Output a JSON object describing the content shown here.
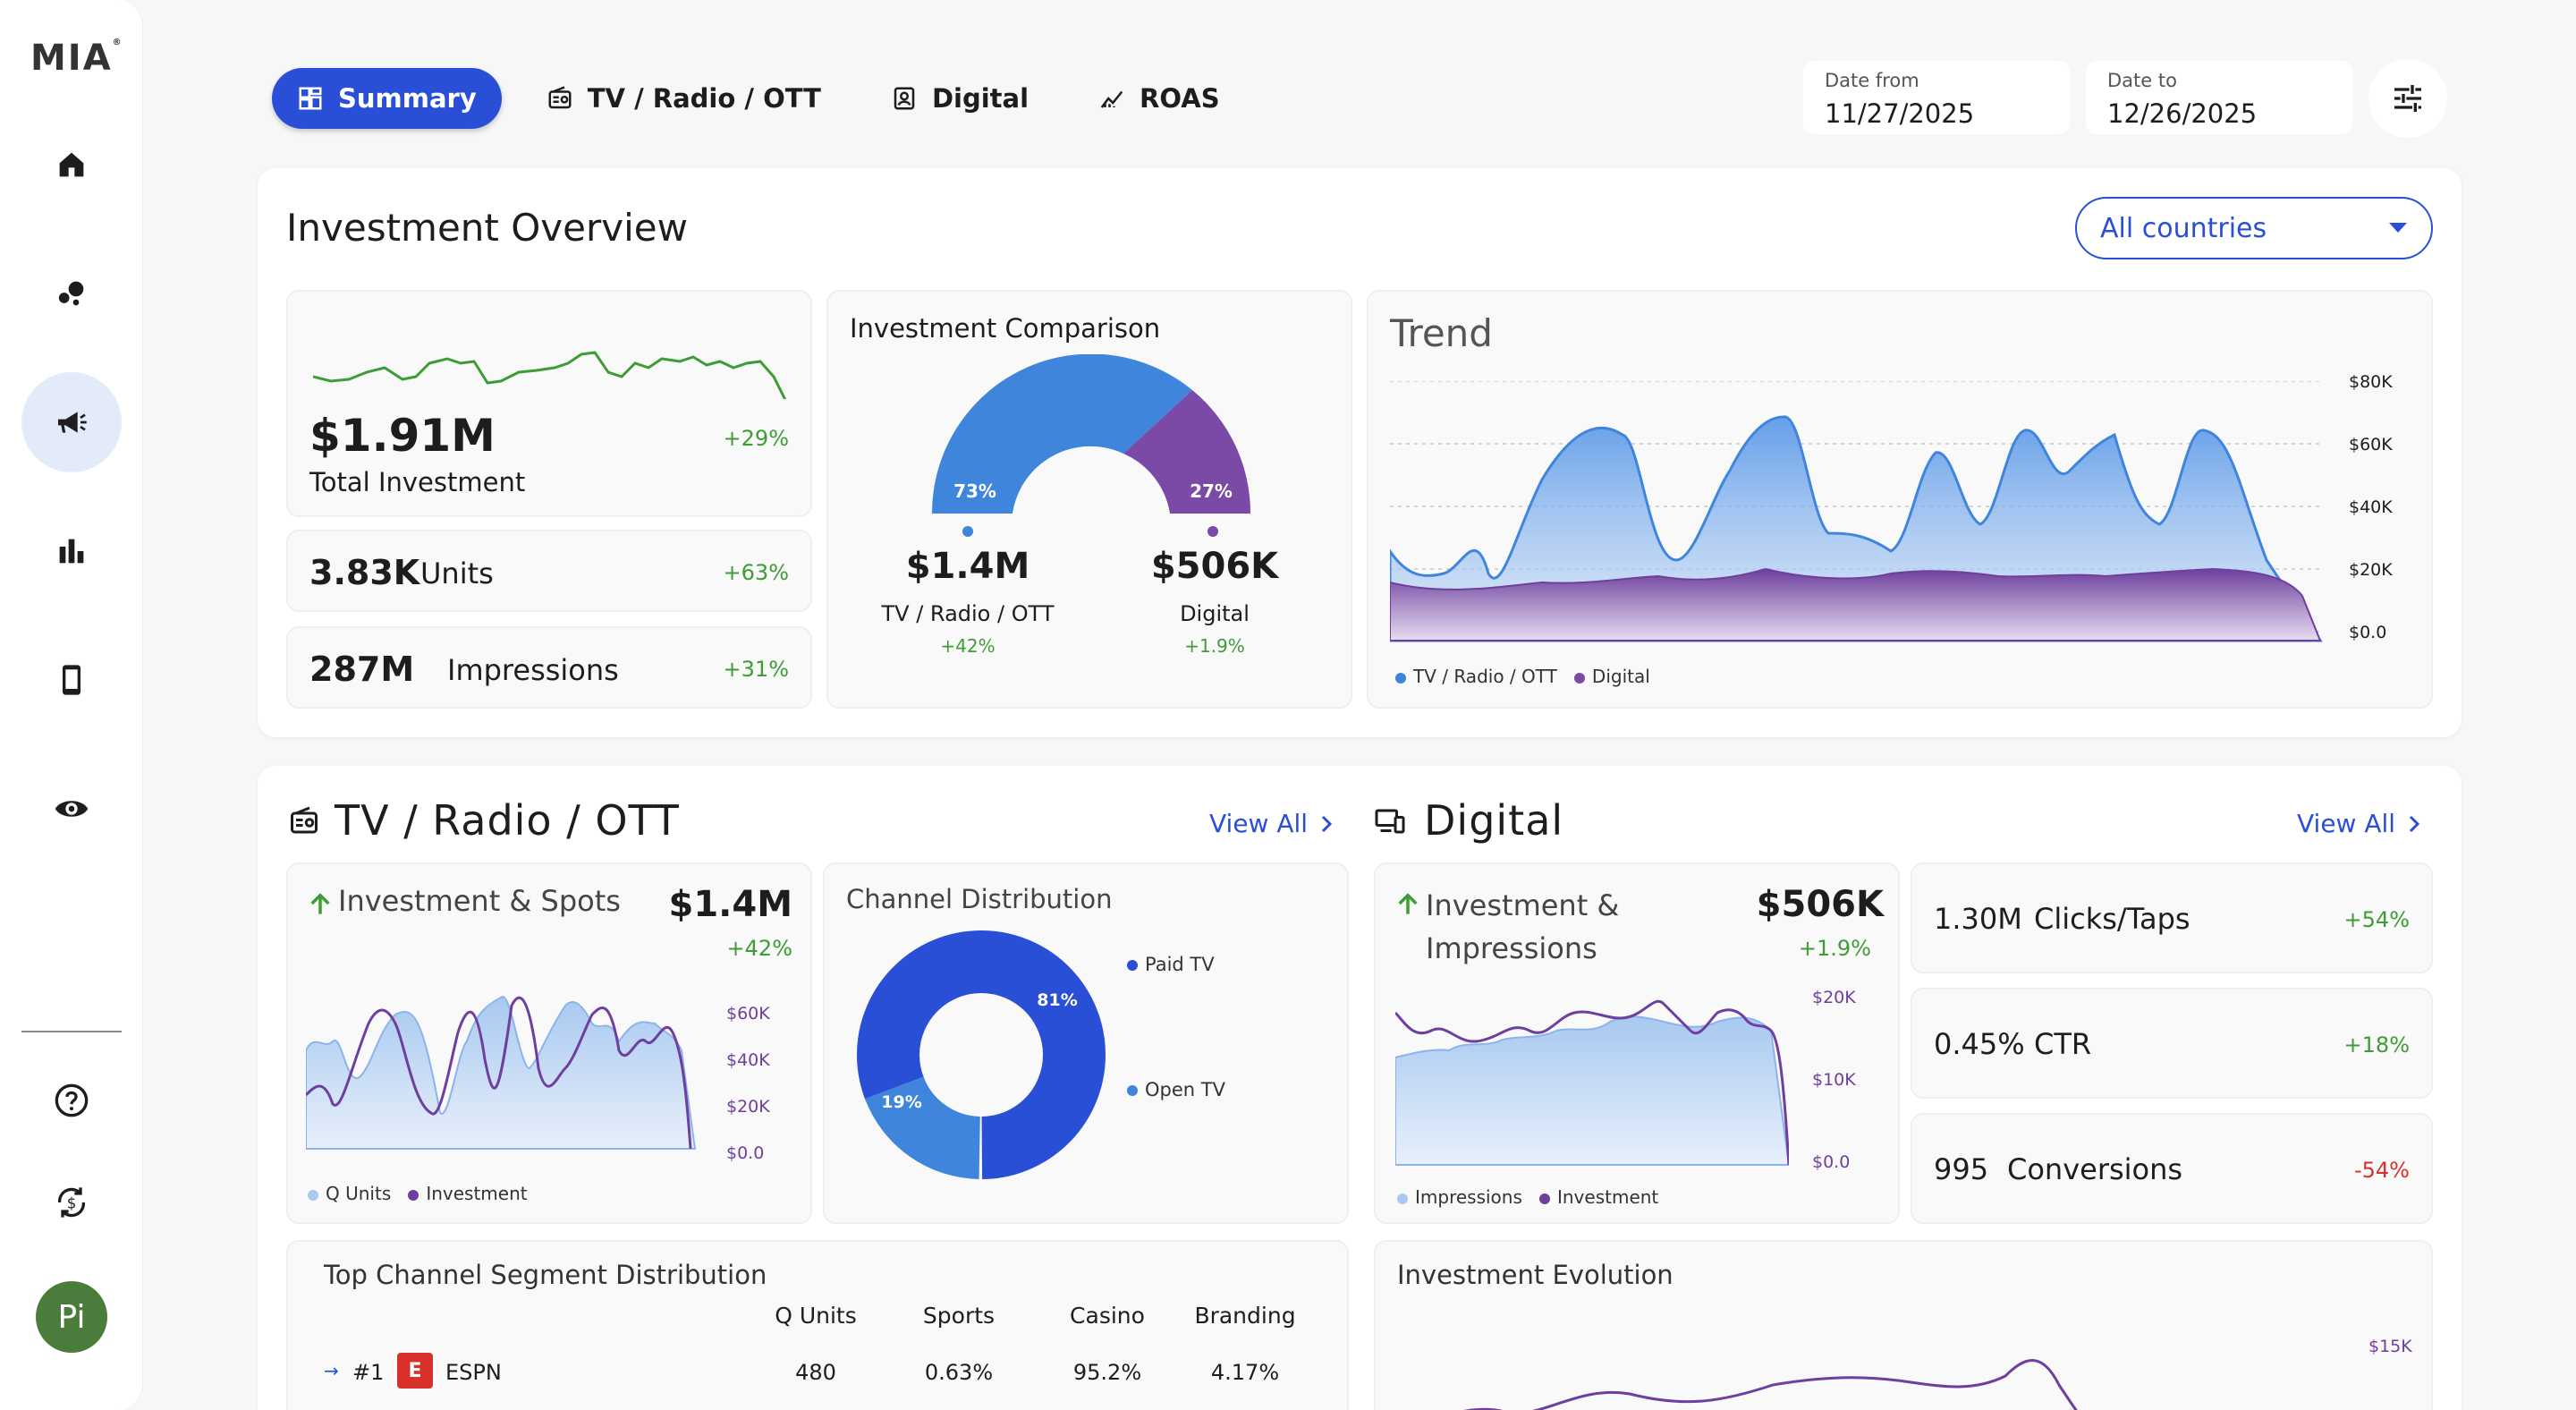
{
  "app": {
    "logo": "MIA"
  },
  "sidebar": {
    "items": [
      {
        "name": "home",
        "icon": "home-icon"
      },
      {
        "name": "bubbles",
        "icon": "bubbles-icon"
      },
      {
        "name": "campaigns",
        "icon": "megaphone-icon",
        "active": true
      },
      {
        "name": "analytics",
        "icon": "bar-chart-icon"
      },
      {
        "name": "mobile",
        "icon": "phone-icon"
      },
      {
        "name": "visibility",
        "icon": "eye-icon"
      }
    ],
    "bottom": [
      {
        "name": "help",
        "icon": "help-icon"
      },
      {
        "name": "currency",
        "icon": "currency-exchange-icon"
      }
    ],
    "avatar": "Pi"
  },
  "tabs": [
    {
      "label": "Summary",
      "icon": "dashboard-icon",
      "active": true
    },
    {
      "label": "TV / Radio / OTT",
      "icon": "tv-icon"
    },
    {
      "label": "Digital",
      "icon": "digital-icon"
    },
    {
      "label": "ROAS",
      "icon": "roas-icon"
    }
  ],
  "dates": {
    "from_label": "Date from",
    "from_value": "11/27/2025",
    "to_label": "Date to",
    "to_value": "12/26/2025"
  },
  "overview": {
    "title": "Investment Overview",
    "country_select": "All countries",
    "total": {
      "value": "$1.91M",
      "label": "Total Investment",
      "delta": "+29%"
    },
    "units": {
      "value": "3.83K",
      "label": "Units",
      "delta": "+63%"
    },
    "impressions": {
      "value": "287M",
      "label": "Impressions",
      "delta": "+31%"
    },
    "comparison": {
      "title": "Investment Comparison",
      "left_pct": "73%",
      "right_pct": "27%",
      "left_value": "$1.4M",
      "left_label": "TV / Radio / OTT",
      "left_delta": "+42%",
      "right_value": "$506K",
      "right_label": "Digital",
      "right_delta": "+1.9%"
    },
    "trend": {
      "title": "Trend",
      "yticks": [
        "$80K",
        "$60K",
        "$40K",
        "$20K",
        "$0.0"
      ],
      "legend": [
        "TV / Radio / OTT",
        "Digital"
      ]
    }
  },
  "tv": {
    "title": "TV / Radio / OTT",
    "view_all": "View All",
    "invest_spots": {
      "title": "Investment & Spots",
      "value": "$1.4M",
      "delta": "+42%",
      "yticks": [
        "$60K",
        "$40K",
        "$20K",
        "$0.0"
      ],
      "legend": [
        "Q Units",
        "Investment"
      ]
    },
    "channel_dist": {
      "title": "Channel Distribution",
      "a_pct": "81%",
      "b_pct": "19%",
      "legend": [
        "Paid TV",
        "Open TV"
      ]
    },
    "segment": {
      "title": "Top Channel Segment Distribution",
      "columns": [
        "Q Units",
        "Sports",
        "Casino",
        "Branding"
      ],
      "rows": [
        {
          "rank": "#1",
          "name": "ESPN",
          "q": "480",
          "sports": "0.63%",
          "casino": "95.2%",
          "branding": "4.17%"
        }
      ]
    }
  },
  "digital": {
    "title": "Digital",
    "view_all": "View All",
    "invest_impr": {
      "title": "Investment & Impressions",
      "value": "$506K",
      "delta": "+1.9%",
      "yticks": [
        "$20K",
        "$10K",
        "$0.0"
      ],
      "legend": [
        "Impressions",
        "Investment"
      ]
    },
    "clicks": {
      "value": "1.30M",
      "label": "Clicks/Taps",
      "delta": "+54%"
    },
    "ctr": {
      "value": "0.45%",
      "label": "CTR",
      "delta": "+18%"
    },
    "conversions": {
      "value": "995",
      "label": "Conversions",
      "delta": "-54%"
    },
    "evolution": {
      "title": "Investment Evolution",
      "ytick": "$15K"
    }
  },
  "colors": {
    "primary": "#2a4fd7",
    "tv_blue": "#3f85dc",
    "digital_purple": "#7b4aa6",
    "positive": "#3e9c35",
    "negative": "#d8312b"
  }
}
